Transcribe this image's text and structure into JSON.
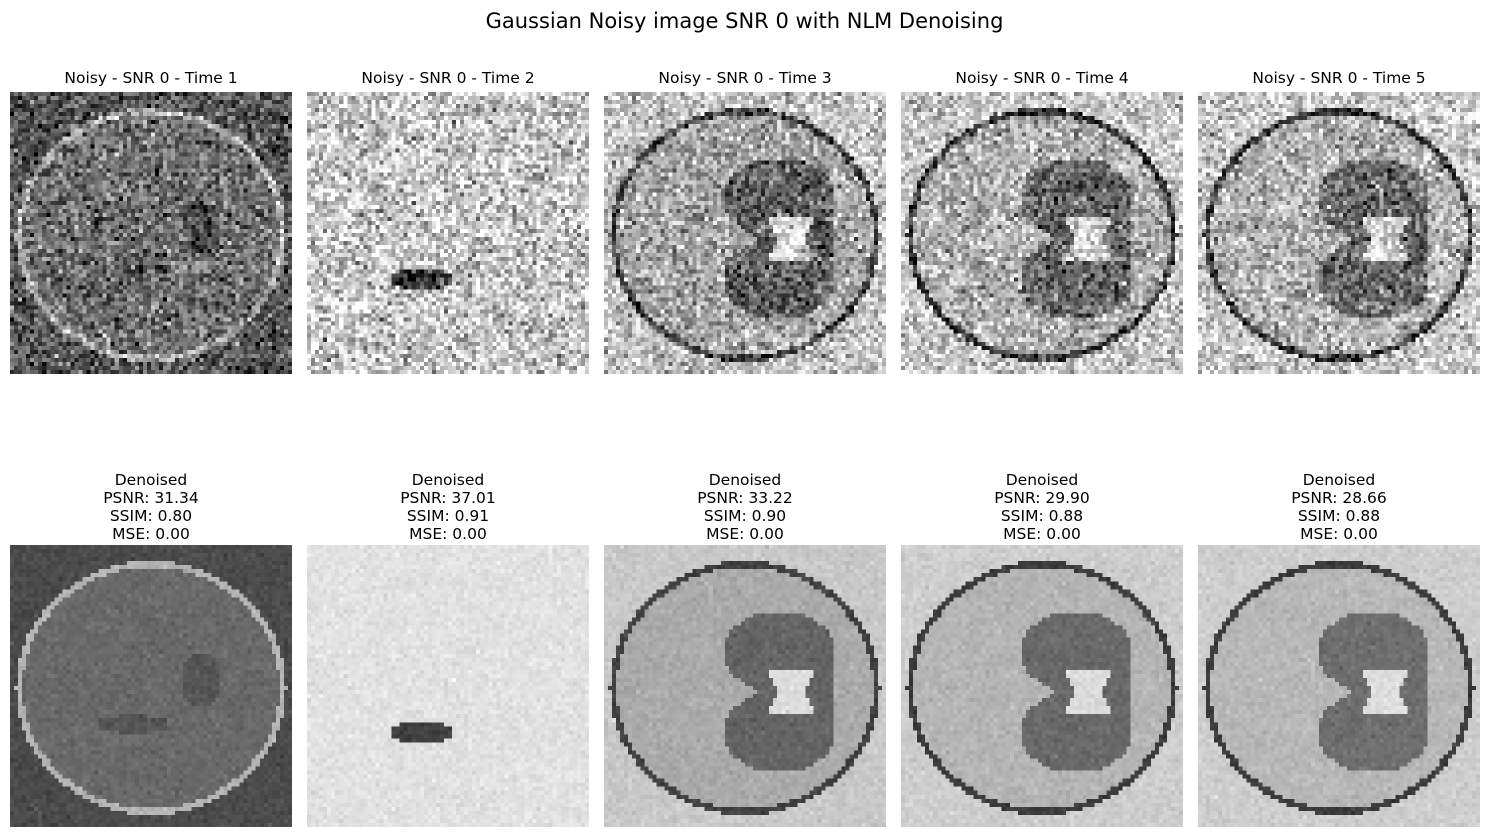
{
  "figure": {
    "title": "Gaussian Noisy image SNR 0 with NLM Denoising"
  },
  "noisy_row": [
    {
      "title": "Noisy - SNR 0 - Time 1"
    },
    {
      "title": "Noisy - SNR 0 - Time 2"
    },
    {
      "title": "Noisy - SNR 0 - Time 3"
    },
    {
      "title": "Noisy - SNR 0 - Time 4"
    },
    {
      "title": "Noisy - SNR 0 - Time 5"
    }
  ],
  "denoised_row": [
    {
      "label": "Denoised",
      "psnr": "PSNR: 31.34",
      "ssim": "SSIM: 0.80",
      "mse": "MSE: 0.00"
    },
    {
      "label": "Denoised",
      "psnr": "PSNR: 37.01",
      "ssim": "SSIM: 0.91",
      "mse": "MSE: 0.00"
    },
    {
      "label": "Denoised",
      "psnr": "PSNR: 33.22",
      "ssim": "SSIM: 0.90",
      "mse": "MSE: 0.00"
    },
    {
      "label": "Denoised",
      "psnr": "PSNR: 29.90",
      "ssim": "SSIM: 0.88",
      "mse": "MSE: 0.00"
    },
    {
      "label": "Denoised",
      "psnr": "PSNR: 28.66",
      "ssim": "SSIM: 0.88",
      "mse": "MSE: 0.00"
    }
  ]
}
